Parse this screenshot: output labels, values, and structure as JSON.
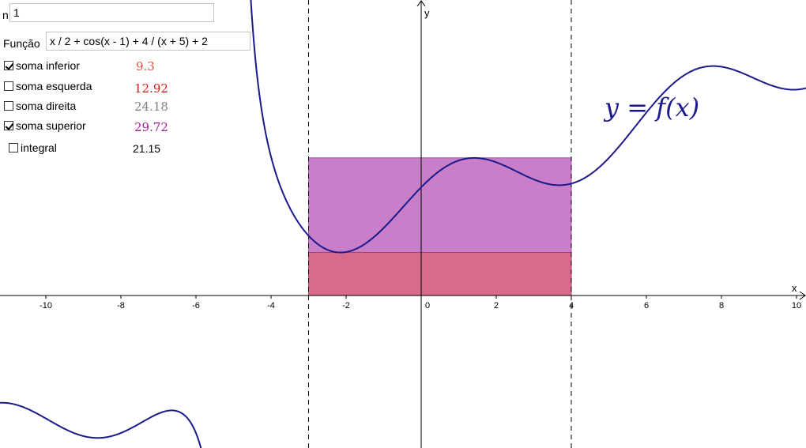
{
  "inputs": {
    "n": {
      "label": "n",
      "value": "1"
    },
    "function": {
      "label": "Função",
      "value": "x / 2 + cos(x - 1) + 4 / (x + 5) + 2"
    }
  },
  "sums": [
    {
      "label": "soma inferior",
      "checked": true,
      "value": "9.3",
      "color": "#e0503c"
    },
    {
      "label": "soma esquerda",
      "checked": false,
      "value": "12.92",
      "color": "#d42020"
    },
    {
      "label": "soma direita",
      "checked": false,
      "value": "24.18",
      "color": "#808080"
    },
    {
      "label": "soma superior",
      "checked": true,
      "value": "29.72",
      "color": "#a0209a"
    },
    {
      "label": "integral",
      "checked": false,
      "value": "21.15",
      "color": "#000000"
    }
  ],
  "graph": {
    "x_axis_label": "x",
    "y_axis_label": "y",
    "curve_label": "y = f(x)",
    "x_ticks": [
      -10,
      -8,
      -6,
      -4,
      -2,
      0,
      2,
      4,
      6,
      8,
      10
    ],
    "x_range": [
      -11.25,
      10.25
    ],
    "interval": {
      "a": -3,
      "b": 4
    },
    "lower_rect_height": 1.33,
    "upper_rect_height": 4.25,
    "colors": {
      "curve": "#1a1a8c",
      "upper_fill": "#c87ec8",
      "upper_stroke": "#a050a0",
      "lower_fill": "#d86a8c",
      "lower_stroke": "#b04060",
      "label": "#1a1a8c"
    }
  }
}
